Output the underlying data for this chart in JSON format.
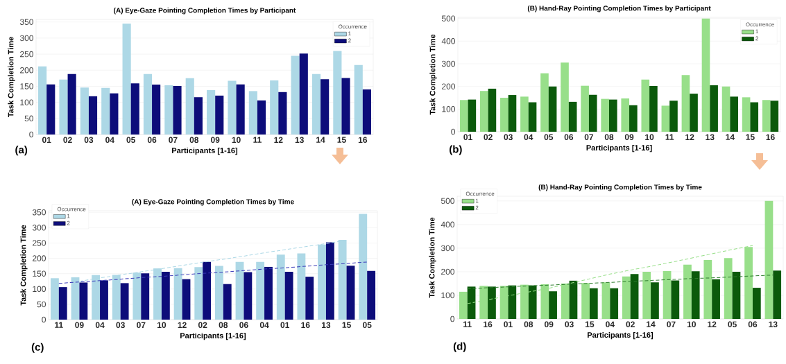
{
  "chart_data": [
    {
      "type": "bar",
      "title": "(A) Eye-Gaze Pointing Completion Times by Participant",
      "xlabel": "Participants [1-16]",
      "ylabel": "Task Completion Time",
      "legend_title": "Occurrence",
      "legend": "top right",
      "grid": "y",
      "annotations": [
        "(a)"
      ],
      "categories": [
        "01",
        "02",
        "03",
        "04",
        "05",
        "06",
        "07",
        "08",
        "09",
        "10",
        "11",
        "12",
        "13",
        "14",
        "15",
        "16"
      ],
      "ylim": [
        0,
        358
      ],
      "yticks": [
        0,
        50,
        100,
        150,
        200,
        250,
        300,
        350
      ],
      "series": [
        {
          "name": "1",
          "color": "#add8e6",
          "values": [
            212,
            171,
            146,
            145,
            345,
            188,
            153,
            175,
            138,
            167,
            135,
            168,
            245,
            188,
            260,
            216
          ]
        },
        {
          "name": "2",
          "color": "#0d0d7a",
          "values": [
            156,
            188,
            119,
            128,
            159,
            155,
            151,
            116,
            121,
            156,
            106,
            132,
            252,
            172,
            176,
            140
          ]
        }
      ]
    },
    {
      "type": "bar",
      "title": "(B) Hand-Ray Pointing Completion Times by Participant",
      "xlabel": "Participants [1-16]",
      "ylabel": "Task Completion Time",
      "legend_title": "Occurrence",
      "legend": "top right",
      "grid": "y",
      "annotations": [
        "(b)"
      ],
      "categories": [
        "01",
        "02",
        "03",
        "04",
        "05",
        "06",
        "07",
        "08",
        "09",
        "10",
        "11",
        "12",
        "13",
        "14",
        "15",
        "16"
      ],
      "ylim": [
        0,
        505
      ],
      "yticks": [
        0,
        100,
        200,
        300,
        400,
        500
      ],
      "series": [
        {
          "name": "1",
          "color": "#98df8a",
          "values": [
            140,
            180,
            150,
            155,
            258,
            305,
            203,
            145,
            147,
            230,
            115,
            250,
            500,
            200,
            152,
            140
          ]
        },
        {
          "name": "2",
          "color": "#0b5a0b",
          "values": [
            142,
            190,
            162,
            130,
            200,
            132,
            163,
            142,
            117,
            202,
            137,
            168,
            205,
            155,
            130,
            137
          ]
        }
      ]
    },
    {
      "type": "bar",
      "title": "(A) Eye-Gaze Pointing Completion Times by Time",
      "xlabel": "Participants [1-16]",
      "ylabel": "Task Completion Time",
      "legend_title": "Occurrence",
      "legend": "top left",
      "grid": "y",
      "annotations": [
        "(c)"
      ],
      "categories": [
        "11",
        "09",
        "04",
        "03",
        "07",
        "10",
        "12",
        "02",
        "08",
        "06",
        "04",
        "01",
        "16",
        "13",
        "15",
        "05"
      ],
      "ylim": [
        0,
        355
      ],
      "yticks": [
        0,
        50,
        100,
        150,
        200,
        250,
        300,
        350
      ],
      "series": [
        {
          "name": "1",
          "color": "#add8e6",
          "values": [
            135,
            138,
            145,
            146,
            153,
            167,
            168,
            171,
            175,
            188,
            188,
            212,
            216,
            245,
            260,
            345
          ]
        },
        {
          "name": "2",
          "color": "#0d0d7a",
          "values": [
            106,
            121,
            128,
            119,
            151,
            156,
            132,
            188,
            116,
            155,
            172,
            156,
            140,
            252,
            176,
            159
          ]
        },
        {
          "type": "line",
          "line_style": "dashed",
          "color": "#add8e6",
          "values": [
            null,
            125,
            136,
            146,
            156,
            166,
            177,
            187,
            197,
            207,
            218,
            228,
            238,
            248,
            259,
            null
          ]
        },
        {
          "type": "line",
          "line_style": "dashed",
          "color": "#3a3ab8",
          "values": [
            118,
            123,
            127,
            132,
            137,
            141,
            146,
            151,
            155,
            160,
            165,
            169,
            174,
            179,
            183,
            188
          ]
        }
      ]
    },
    {
      "type": "bar",
      "title": "(B) Hand-Ray Pointing Completion Times by Time",
      "xlabel": "Participants [1-16]",
      "ylabel": "Task Completion Time",
      "legend_title": "Occurrence",
      "legend": "top left",
      "grid": "y",
      "annotations": [
        "(d)"
      ],
      "categories": [
        "11",
        "16",
        "01",
        "08",
        "09",
        "03",
        "15",
        "04",
        "02",
        "14",
        "07",
        "10",
        "12",
        "05",
        "06",
        "13"
      ],
      "ylim": [
        0,
        520
      ],
      "yticks": [
        0,
        100,
        200,
        300,
        400,
        500
      ],
      "series": [
        {
          "name": "1",
          "color": "#98df8a",
          "values": [
            115,
            140,
            140,
            145,
            147,
            150,
            152,
            155,
            180,
            200,
            203,
            230,
            250,
            258,
            305,
            500
          ]
        },
        {
          "name": "2",
          "color": "#0b5a0b",
          "values": [
            137,
            137,
            142,
            142,
            117,
            162,
            130,
            130,
            190,
            155,
            163,
            202,
            168,
            200,
            132,
            205
          ]
        },
        {
          "type": "line",
          "line_style": "dashed",
          "color": "#98df8a",
          "values": [
            65,
            81,
            98,
            114,
            130,
            150,
            170,
            190,
            207,
            223,
            240,
            258,
            276,
            294,
            311,
            null
          ]
        },
        {
          "type": "line",
          "line_style": "dashed",
          "color": "#2e7d2e",
          "values": [
            128,
            132,
            136,
            140,
            143,
            147,
            151,
            155,
            159,
            163,
            167,
            171,
            174,
            178,
            182,
            186
          ]
        }
      ]
    }
  ]
}
